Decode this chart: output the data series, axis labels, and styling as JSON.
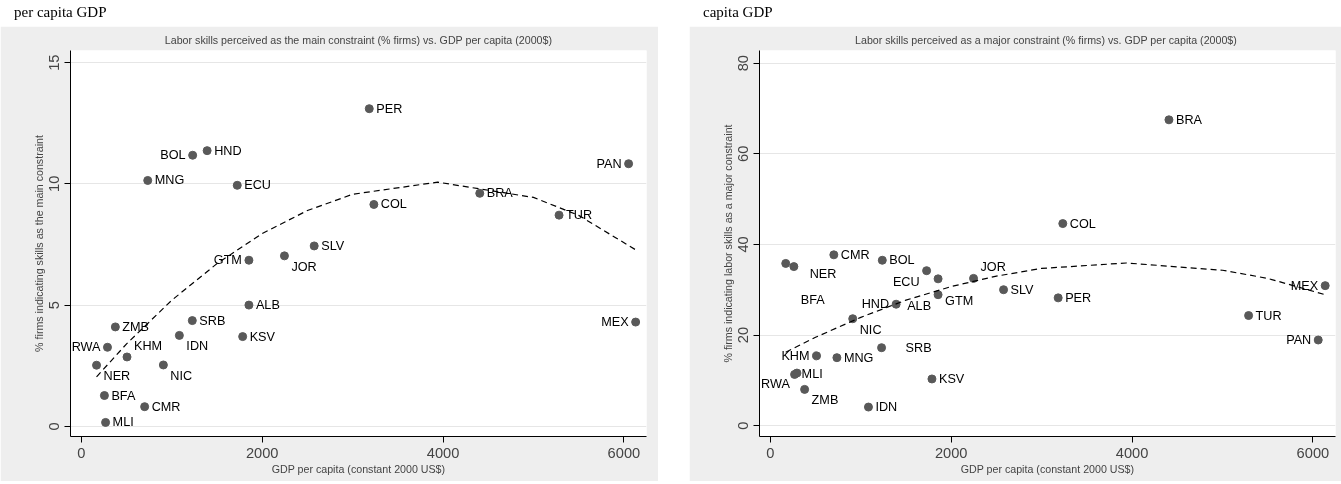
{
  "chart_data": [
    {
      "type": "scatter",
      "title": "Labor skills perceived as the main constraint (% firms) vs. GDP per capita (2000$)",
      "xlabel": "GDP per capita (constant 2000 US$)",
      "ylabel": "% firms indicating skills as the main constraint",
      "x": [
        3184,
        1391,
        1231,
        734,
        1724,
        6052,
        4406,
        3235,
        5283,
        2575,
        2246,
        1853,
        1853,
        1227,
        6130,
        376,
        1084,
        1784,
        289,
        505,
        907,
        168,
        255,
        700,
        268
      ],
      "series": [
        {
          "type": "scatter",
          "color": "#595959",
          "marker": "circle",
          "values": [
            13.1,
            11.37,
            11.18,
            10.14,
            9.94,
            10.83,
            9.61,
            9.15,
            8.71,
            7.44,
            7.03,
            6.85,
            5.0,
            4.36,
            4.3,
            4.1,
            3.75,
            3.7,
            3.26,
            2.86,
            2.53,
            2.52,
            1.27,
            0.81,
            0.16
          ]
        },
        {
          "type": "line",
          "color": "#000000",
          "line_style": "dashed",
          "x": [
            168,
            500,
            1000,
            1500,
            2000,
            2500,
            3000,
            3940,
            5000,
            5500,
            6130
          ],
          "values": [
            2.04,
            3.4,
            5.2,
            6.71,
            7.95,
            8.9,
            9.57,
            10.07,
            9.44,
            8.7,
            7.28
          ]
        }
      ],
      "annotations": [
        "per capita GDP",
        {
          "text": "PER",
          "x": 3184,
          "y": 13.1
        },
        {
          "text": "HND",
          "x": 1391,
          "y": 11.37
        },
        {
          "text": "BOL",
          "x": 1231,
          "y": 11.18
        },
        {
          "text": "MNG",
          "x": 734,
          "y": 10.14
        },
        {
          "text": "ECU",
          "x": 1724,
          "y": 9.94
        },
        {
          "text": "PAN",
          "x": 6052,
          "y": 10.83
        },
        {
          "text": "BRA",
          "x": 4406,
          "y": 9.61
        },
        {
          "text": "COL",
          "x": 3235,
          "y": 9.15
        },
        {
          "text": "TUR",
          "x": 5283,
          "y": 8.71
        },
        {
          "text": "SLV",
          "x": 2575,
          "y": 7.44
        },
        {
          "text": "JOR",
          "x": 2246,
          "y": 7.03
        },
        {
          "text": "GTM",
          "x": 1853,
          "y": 6.85
        },
        {
          "text": "ALB",
          "x": 1853,
          "y": 5.0
        },
        {
          "text": "SRB",
          "x": 1227,
          "y": 4.36
        },
        {
          "text": "MEX",
          "x": 6130,
          "y": 4.3
        },
        {
          "text": "ZMB",
          "x": 376,
          "y": 4.1
        },
        {
          "text": "IDN",
          "x": 1084,
          "y": 3.75
        },
        {
          "text": "KSV",
          "x": 1784,
          "y": 3.7
        },
        {
          "text": "RWA",
          "x": 289,
          "y": 3.26
        },
        {
          "text": "KHM",
          "x": 505,
          "y": 2.86
        },
        {
          "text": "NIC",
          "x": 907,
          "y": 2.53
        },
        {
          "text": "NER",
          "x": 168,
          "y": 2.52
        },
        {
          "text": "BFA",
          "x": 255,
          "y": 1.27
        },
        {
          "text": "CMR",
          "x": 700,
          "y": 0.81
        },
        {
          "text": "MLI",
          "x": 268,
          "y": 0.16
        }
      ],
      "xlim": [
        -120,
        6250
      ],
      "ylim": [
        -0.42,
        15.5
      ],
      "xticks": [
        0,
        2000,
        4000,
        6000
      ],
      "yticks": [
        0,
        5,
        10,
        15
      ],
      "grid": "y"
    },
    {
      "type": "scatter",
      "title": "Labor skills perceived as a major constraint (% firms)  vs. GDP per capita (2000$)",
      "xlabel": "GDP per capita (constant 2000 US$)",
      "ylabel": "% firms indicating labor skills as a major constraint",
      "x": [
        4408,
        3234,
        702,
        1238,
        170,
        260,
        1728,
        1855,
        2247,
        2579,
        1855,
        3183,
        1391,
        5289,
        911,
        6136,
        6059,
        1230,
        511,
        736,
        294,
        268,
        379,
        1787,
        1085
      ],
      "series": [
        {
          "type": "scatter",
          "color": "#595959",
          "marker": "circle",
          "values": [
            67.5,
            44.6,
            37.7,
            36.5,
            35.8,
            35.1,
            34.2,
            32.4,
            32.5,
            30.0,
            28.9,
            28.2,
            26.8,
            24.3,
            23.6,
            30.9,
            18.9,
            17.2,
            15.4,
            15.0,
            11.6,
            11.3,
            8.0,
            10.3,
            4.1
          ]
        },
        {
          "type": "line",
          "color": "#000000",
          "line_style": "dashed",
          "x": [
            170,
            500,
            1000,
            1500,
            2000,
            2500,
            3000,
            3936,
            5000,
            5500,
            6136
          ],
          "values": [
            16.2,
            19.5,
            23.9,
            27.7,
            30.7,
            33.0,
            34.7,
            35.9,
            34.3,
            32.5,
            28.9
          ]
        }
      ],
      "annotations": [
        "capita GDP",
        {
          "text": "BRA",
          "x": 4408,
          "y": 67.5
        },
        {
          "text": "COL",
          "x": 3234,
          "y": 44.6
        },
        {
          "text": "CMR",
          "x": 702,
          "y": 37.7
        },
        {
          "text": "BOL",
          "x": 1238,
          "y": 36.5
        },
        {
          "text": "NER",
          "x": 170,
          "y": 35.8
        },
        {
          "text": "BFA",
          "x": 260,
          "y": 35.1
        },
        {
          "text": "ECU",
          "x": 1728,
          "y": 34.2
        },
        {
          "text": "GTM",
          "x": 1855,
          "y": 32.4
        },
        {
          "text": "JOR",
          "x": 2247,
          "y": 32.5
        },
        {
          "text": "SLV",
          "x": 2579,
          "y": 30.0
        },
        {
          "text": "ALB",
          "x": 1855,
          "y": 28.9
        },
        {
          "text": "PER",
          "x": 3183,
          "y": 28.2
        },
        {
          "text": "HND",
          "x": 1391,
          "y": 26.8
        },
        {
          "text": "TUR",
          "x": 5289,
          "y": 24.3
        },
        {
          "text": "NIC",
          "x": 911,
          "y": 23.6
        },
        {
          "text": "MEX",
          "x": 6136,
          "y": 30.9
        },
        {
          "text": "PAN",
          "x": 6059,
          "y": 18.9
        },
        {
          "text": "SRB",
          "x": 1230,
          "y": 17.2
        },
        {
          "text": "KHM",
          "x": 511,
          "y": 15.4
        },
        {
          "text": "MNG",
          "x": 736,
          "y": 15.0
        },
        {
          "text": "RWA",
          "x": 294,
          "y": 11.6
        },
        {
          "text": "MLI",
          "x": 268,
          "y": 11.3
        },
        {
          "text": "ZMB",
          "x": 379,
          "y": 8.0
        },
        {
          "text": "KSV",
          "x": 1787,
          "y": 10.3
        },
        {
          "text": "IDN",
          "x": 1085,
          "y": 4.1
        }
      ],
      "xlim": [
        -120,
        6250
      ],
      "ylim": [
        -2.4,
        82.8
      ],
      "xticks": [
        0,
        2000,
        4000,
        6000
      ],
      "yticks": [
        0,
        20,
        40,
        60,
        80
      ],
      "grid": "y"
    }
  ]
}
